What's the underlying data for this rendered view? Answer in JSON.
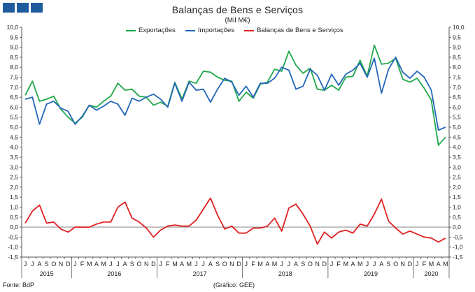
{
  "header": {
    "title": "Balanças de Bens e Serviços",
    "subtitle": "(Mil M€)"
  },
  "footer": {
    "source": "Fonte: BdP",
    "credit": "(Gráfico: GEE)"
  },
  "chart_data": {
    "type": "line",
    "title": "Balanças de Bens e Serviços",
    "subtitle": "(Mil M€)",
    "ylim": [
      -1.5,
      10.0
    ],
    "y_ticks": [
      "10,0",
      "9,5",
      "9,0",
      "8,5",
      "8,0",
      "7,5",
      "7,0",
      "6,5",
      "6,0",
      "5,5",
      "5,0",
      "4,5",
      "4,0",
      "3,5",
      "3,0",
      "2,5",
      "2,0",
      "1,5",
      "1,0",
      "0,5",
      "0,0",
      "-0,5",
      "-1,0",
      "-1,5"
    ],
    "y_axes": "left-and-right",
    "grid": false,
    "legend_position": "top",
    "months": [
      "J",
      "J",
      "A",
      "S",
      "O",
      "N",
      "D",
      "J",
      "F",
      "M",
      "A",
      "M",
      "J",
      "J",
      "A",
      "S",
      "O",
      "N",
      "D",
      "J",
      "F",
      "M",
      "A",
      "M",
      "J",
      "J",
      "A",
      "S",
      "O",
      "N",
      "D",
      "J",
      "F",
      "M",
      "A",
      "M",
      "J",
      "J",
      "A",
      "S",
      "O",
      "N",
      "D",
      "J",
      "F",
      "M",
      "A",
      "M",
      "J",
      "J",
      "A",
      "S",
      "O",
      "N",
      "D",
      "J",
      "F",
      "M",
      "A",
      "M"
    ],
    "years": [
      {
        "label": "2015",
        "start": 0,
        "end": 6
      },
      {
        "label": "2016",
        "start": 7,
        "end": 18
      },
      {
        "label": "2017",
        "start": 19,
        "end": 30
      },
      {
        "label": "2018",
        "start": 31,
        "end": 42
      },
      {
        "label": "2019",
        "start": 43,
        "end": 54
      },
      {
        "label": "2020",
        "start": 55,
        "end": 59
      }
    ],
    "series": [
      {
        "name": "Exportações",
        "color": "#1fa84a",
        "values": [
          6.6,
          7.3,
          6.3,
          6.4,
          6.55,
          5.9,
          5.5,
          5.2,
          5.5,
          6.1,
          6.0,
          6.3,
          6.55,
          7.2,
          6.85,
          6.9,
          6.55,
          6.5,
          6.1,
          6.25,
          6.05,
          7.25,
          6.4,
          7.3,
          7.2,
          7.8,
          7.75,
          7.5,
          7.35,
          7.3,
          6.3,
          6.75,
          6.45,
          7.15,
          7.25,
          7.9,
          7.8,
          8.8,
          8.1,
          7.7,
          7.95,
          6.9,
          6.85,
          7.1,
          6.85,
          7.5,
          7.55,
          8.35,
          7.55,
          9.1,
          8.15,
          8.2,
          8.45,
          7.4,
          7.25,
          7.45,
          6.95,
          6.35,
          4.1,
          4.5
        ]
      },
      {
        "name": "Importações",
        "color": "#2266b8",
        "values": [
          6.4,
          6.5,
          5.15,
          6.15,
          6.3,
          5.95,
          5.8,
          5.15,
          5.55,
          6.1,
          5.85,
          6.05,
          6.3,
          6.15,
          5.6,
          6.45,
          6.3,
          6.5,
          6.65,
          6.4,
          6.0,
          7.2,
          6.3,
          7.25,
          6.85,
          6.9,
          6.25,
          6.9,
          7.45,
          7.25,
          6.6,
          7.05,
          6.5,
          7.2,
          7.2,
          7.45,
          8.0,
          7.85,
          6.9,
          7.05,
          7.9,
          7.6,
          6.85,
          7.65,
          7.1,
          7.65,
          7.85,
          8.2,
          7.5,
          8.45,
          6.7,
          7.9,
          8.5,
          7.75,
          7.45,
          7.8,
          7.5,
          6.85,
          4.85,
          5.0
        ]
      },
      {
        "name": "Balanças de Bens e Serviços",
        "color": "#e02020",
        "values": [
          0.2,
          0.8,
          1.1,
          0.2,
          0.25,
          -0.1,
          -0.25,
          0.0,
          0.0,
          0.0,
          0.15,
          0.25,
          0.25,
          1.0,
          1.25,
          0.45,
          0.25,
          -0.05,
          -0.5,
          -0.15,
          0.05,
          0.1,
          0.05,
          0.05,
          0.35,
          0.9,
          1.45,
          0.6,
          -0.1,
          0.05,
          -0.3,
          -0.3,
          -0.05,
          -0.05,
          0.05,
          0.45,
          -0.2,
          0.95,
          1.15,
          0.65,
          0.05,
          -0.85,
          -0.25,
          -0.55,
          -0.25,
          -0.15,
          -0.3,
          0.15,
          0.05,
          0.65,
          1.4,
          0.3,
          -0.05,
          -0.35,
          -0.2,
          -0.35,
          -0.5,
          -0.55,
          -0.75,
          -0.55
        ]
      }
    ]
  }
}
